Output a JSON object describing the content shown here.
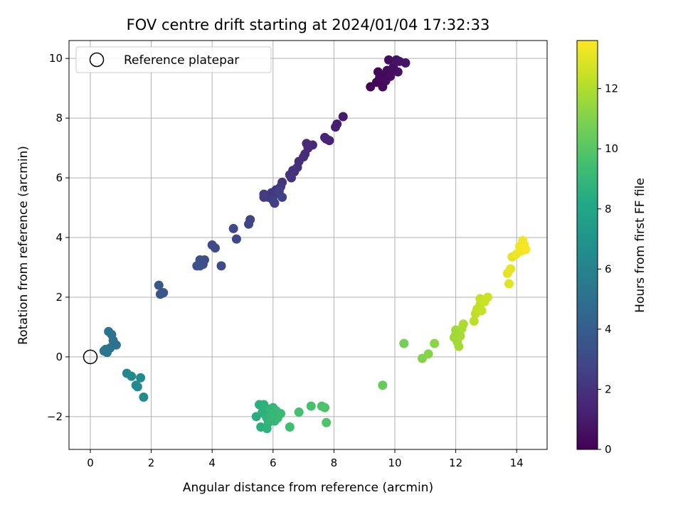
{
  "chart_data": {
    "type": "scatter",
    "title": "FOV centre drift starting at 2024/01/04 17:32:33",
    "xlabel": "Angular distance from reference (arcmin)",
    "ylabel": "Rotation from reference (arcmin)",
    "xlim": [
      -0.7,
      15.0
    ],
    "ylim": [
      -3.1,
      10.6
    ],
    "xticks": [
      0,
      2,
      4,
      6,
      8,
      10,
      12,
      14
    ],
    "yticks": [
      -2,
      0,
      2,
      4,
      6,
      8,
      10
    ],
    "grid": true,
    "legend": {
      "placement": "top-left",
      "entries": [
        {
          "label": "Reference platepar",
          "marker": "open-circle"
        }
      ]
    },
    "reference_point": {
      "x": 0,
      "y": 0
    },
    "colorbar": {
      "label": "Hours from first FF file",
      "colormap": "viridis",
      "range": [
        0,
        13.6
      ],
      "ticks": [
        0,
        2,
        4,
        6,
        8,
        10,
        12
      ]
    },
    "points": [
      {
        "x": 9.2,
        "y": 9.05,
        "c": 0.1
      },
      {
        "x": 9.4,
        "y": 9.2,
        "c": 0.15
      },
      {
        "x": 9.45,
        "y": 9.55,
        "c": 0.2
      },
      {
        "x": 9.55,
        "y": 9.3,
        "c": 0.25
      },
      {
        "x": 9.6,
        "y": 9.05,
        "c": 0.3
      },
      {
        "x": 9.65,
        "y": 9.45,
        "c": 0.35
      },
      {
        "x": 9.75,
        "y": 9.6,
        "c": 0.4
      },
      {
        "x": 9.8,
        "y": 9.95,
        "c": 0.45
      },
      {
        "x": 9.85,
        "y": 9.4,
        "c": 0.5
      },
      {
        "x": 9.95,
        "y": 9.7,
        "c": 0.55
      },
      {
        "x": 10.05,
        "y": 9.95,
        "c": 0.6
      },
      {
        "x": 10.1,
        "y": 9.55,
        "c": 0.65
      },
      {
        "x": 10.15,
        "y": 9.9,
        "c": 0.7
      },
      {
        "x": 10.35,
        "y": 9.85,
        "c": 0.75
      },
      {
        "x": 9.5,
        "y": 9.35,
        "c": 0.3
      },
      {
        "x": 9.7,
        "y": 9.25,
        "c": 0.4
      },
      {
        "x": 9.9,
        "y": 9.6,
        "c": 0.5
      },
      {
        "x": 8.3,
        "y": 8.05,
        "c": 1.0
      },
      {
        "x": 8.1,
        "y": 7.8,
        "c": 1.1
      },
      {
        "x": 8.05,
        "y": 7.7,
        "c": 1.15
      },
      {
        "x": 7.85,
        "y": 7.25,
        "c": 1.3
      },
      {
        "x": 7.7,
        "y": 7.35,
        "c": 1.35
      },
      {
        "x": 7.75,
        "y": 7.3,
        "c": 1.4
      },
      {
        "x": 7.3,
        "y": 7.1,
        "c": 1.55
      },
      {
        "x": 7.15,
        "y": 7.0,
        "c": 1.6
      },
      {
        "x": 7.1,
        "y": 7.15,
        "c": 1.65
      },
      {
        "x": 7.05,
        "y": 6.8,
        "c": 1.7
      },
      {
        "x": 7.0,
        "y": 6.7,
        "c": 1.75
      },
      {
        "x": 6.85,
        "y": 6.55,
        "c": 1.8
      },
      {
        "x": 6.8,
        "y": 6.35,
        "c": 1.85
      },
      {
        "x": 6.7,
        "y": 6.2,
        "c": 1.9
      },
      {
        "x": 6.6,
        "y": 6.0,
        "c": 1.95
      },
      {
        "x": 6.65,
        "y": 6.25,
        "c": 1.95
      },
      {
        "x": 6.55,
        "y": 6.1,
        "c": 2.0
      },
      {
        "x": 6.3,
        "y": 5.85,
        "c": 2.05
      },
      {
        "x": 6.25,
        "y": 5.7,
        "c": 2.1
      },
      {
        "x": 6.1,
        "y": 5.6,
        "c": 2.15
      },
      {
        "x": 6.05,
        "y": 5.45,
        "c": 2.2
      },
      {
        "x": 5.95,
        "y": 5.5,
        "c": 2.25
      },
      {
        "x": 5.85,
        "y": 5.35,
        "c": 2.3
      },
      {
        "x": 5.7,
        "y": 5.35,
        "c": 2.35
      },
      {
        "x": 5.7,
        "y": 5.45,
        "c": 2.4
      },
      {
        "x": 6.0,
        "y": 5.25,
        "c": 2.45
      },
      {
        "x": 6.05,
        "y": 5.15,
        "c": 2.5
      },
      {
        "x": 6.2,
        "y": 5.55,
        "c": 2.5
      },
      {
        "x": 6.3,
        "y": 5.35,
        "c": 2.55
      },
      {
        "x": 5.25,
        "y": 4.6,
        "c": 2.7
      },
      {
        "x": 5.2,
        "y": 4.45,
        "c": 2.75
      },
      {
        "x": 4.8,
        "y": 3.95,
        "c": 2.85
      },
      {
        "x": 4.7,
        "y": 4.3,
        "c": 2.9
      },
      {
        "x": 4.3,
        "y": 3.05,
        "c": 3.0
      },
      {
        "x": 4.1,
        "y": 3.65,
        "c": 3.05
      },
      {
        "x": 4.0,
        "y": 3.75,
        "c": 3.1
      },
      {
        "x": 3.75,
        "y": 3.25,
        "c": 3.2
      },
      {
        "x": 3.7,
        "y": 3.1,
        "c": 3.25
      },
      {
        "x": 3.6,
        "y": 3.25,
        "c": 3.3
      },
      {
        "x": 3.6,
        "y": 3.05,
        "c": 3.35
      },
      {
        "x": 3.5,
        "y": 3.05,
        "c": 3.4
      },
      {
        "x": 2.4,
        "y": 2.15,
        "c": 3.6
      },
      {
        "x": 2.3,
        "y": 2.1,
        "c": 3.65
      },
      {
        "x": 2.25,
        "y": 2.4,
        "c": 3.7
      },
      {
        "x": 0.85,
        "y": 0.4,
        "c": 5.0
      },
      {
        "x": 0.75,
        "y": 0.55,
        "c": 5.05
      },
      {
        "x": 0.7,
        "y": 0.75,
        "c": 5.1
      },
      {
        "x": 0.6,
        "y": 0.85,
        "c": 5.15
      },
      {
        "x": 0.65,
        "y": 0.3,
        "c": 5.2
      },
      {
        "x": 0.55,
        "y": 0.15,
        "c": 5.25
      },
      {
        "x": 0.5,
        "y": 0.25,
        "c": 5.3
      },
      {
        "x": 0.45,
        "y": 0.2,
        "c": 5.35
      },
      {
        "x": 1.2,
        "y": -0.55,
        "c": 6.2
      },
      {
        "x": 1.35,
        "y": -0.65,
        "c": 6.3
      },
      {
        "x": 1.5,
        "y": -0.95,
        "c": 6.4
      },
      {
        "x": 1.55,
        "y": -1.0,
        "c": 6.45
      },
      {
        "x": 1.65,
        "y": -0.7,
        "c": 6.5
      },
      {
        "x": 1.75,
        "y": -1.35,
        "c": 6.6
      },
      {
        "x": 5.45,
        "y": -2.0,
        "c": 8.4
      },
      {
        "x": 5.55,
        "y": -1.6,
        "c": 8.5
      },
      {
        "x": 5.6,
        "y": -2.35,
        "c": 8.55
      },
      {
        "x": 5.65,
        "y": -1.85,
        "c": 8.6
      },
      {
        "x": 5.75,
        "y": -1.95,
        "c": 8.65
      },
      {
        "x": 5.7,
        "y": -1.6,
        "c": 8.7
      },
      {
        "x": 5.8,
        "y": -2.4,
        "c": 8.75
      },
      {
        "x": 5.85,
        "y": -2.2,
        "c": 8.8
      },
      {
        "x": 5.9,
        "y": -1.75,
        "c": 8.85
      },
      {
        "x": 5.95,
        "y": -2.0,
        "c": 8.9
      },
      {
        "x": 6.0,
        "y": -1.7,
        "c": 8.95
      },
      {
        "x": 6.05,
        "y": -2.15,
        "c": 9.0
      },
      {
        "x": 6.1,
        "y": -1.8,
        "c": 9.05
      },
      {
        "x": 6.15,
        "y": -2.05,
        "c": 9.1
      },
      {
        "x": 6.25,
        "y": -1.9,
        "c": 9.15
      },
      {
        "x": 5.8,
        "y": -2.05,
        "c": 8.8
      },
      {
        "x": 5.9,
        "y": -2.1,
        "c": 8.9
      },
      {
        "x": 6.0,
        "y": -1.9,
        "c": 9.0
      },
      {
        "x": 6.55,
        "y": -2.35,
        "c": 9.4
      },
      {
        "x": 6.85,
        "y": -1.85,
        "c": 9.5
      },
      {
        "x": 7.25,
        "y": -1.65,
        "c": 9.6
      },
      {
        "x": 7.6,
        "y": -1.65,
        "c": 9.7
      },
      {
        "x": 7.7,
        "y": -1.7,
        "c": 9.75
      },
      {
        "x": 7.75,
        "y": -2.2,
        "c": 9.8
      },
      {
        "x": 9.6,
        "y": -0.95,
        "c": 10.4
      },
      {
        "x": 10.3,
        "y": 0.45,
        "c": 10.7
      },
      {
        "x": 10.9,
        "y": -0.05,
        "c": 11.0
      },
      {
        "x": 11.1,
        "y": 0.1,
        "c": 11.1
      },
      {
        "x": 11.3,
        "y": 0.45,
        "c": 11.2
      },
      {
        "x": 11.95,
        "y": 0.65,
        "c": 11.6
      },
      {
        "x": 12.0,
        "y": 0.9,
        "c": 11.65
      },
      {
        "x": 12.05,
        "y": 0.5,
        "c": 11.7
      },
      {
        "x": 12.1,
        "y": 0.35,
        "c": 11.75
      },
      {
        "x": 12.15,
        "y": 0.7,
        "c": 11.8
      },
      {
        "x": 12.2,
        "y": 0.95,
        "c": 11.85
      },
      {
        "x": 12.25,
        "y": 1.1,
        "c": 11.9
      },
      {
        "x": 12.0,
        "y": 0.75,
        "c": 11.7
      },
      {
        "x": 12.6,
        "y": 1.2,
        "c": 12.2
      },
      {
        "x": 12.65,
        "y": 1.45,
        "c": 12.25
      },
      {
        "x": 12.7,
        "y": 1.6,
        "c": 12.3
      },
      {
        "x": 12.8,
        "y": 1.75,
        "c": 12.35
      },
      {
        "x": 12.85,
        "y": 1.55,
        "c": 12.4
      },
      {
        "x": 12.8,
        "y": 1.95,
        "c": 12.45
      },
      {
        "x": 12.95,
        "y": 1.85,
        "c": 12.5
      },
      {
        "x": 13.05,
        "y": 2.0,
        "c": 12.55
      },
      {
        "x": 13.75,
        "y": 2.45,
        "c": 13.0
      },
      {
        "x": 13.7,
        "y": 2.8,
        "c": 13.05
      },
      {
        "x": 13.8,
        "y": 2.95,
        "c": 13.1
      },
      {
        "x": 13.85,
        "y": 3.35,
        "c": 13.15
      },
      {
        "x": 14.0,
        "y": 3.45,
        "c": 13.2
      },
      {
        "x": 14.1,
        "y": 3.7,
        "c": 13.25
      },
      {
        "x": 14.15,
        "y": 3.55,
        "c": 13.3
      },
      {
        "x": 14.2,
        "y": 3.9,
        "c": 13.35
      },
      {
        "x": 14.25,
        "y": 3.75,
        "c": 13.4
      },
      {
        "x": 14.3,
        "y": 3.6,
        "c": 13.45
      }
    ]
  }
}
